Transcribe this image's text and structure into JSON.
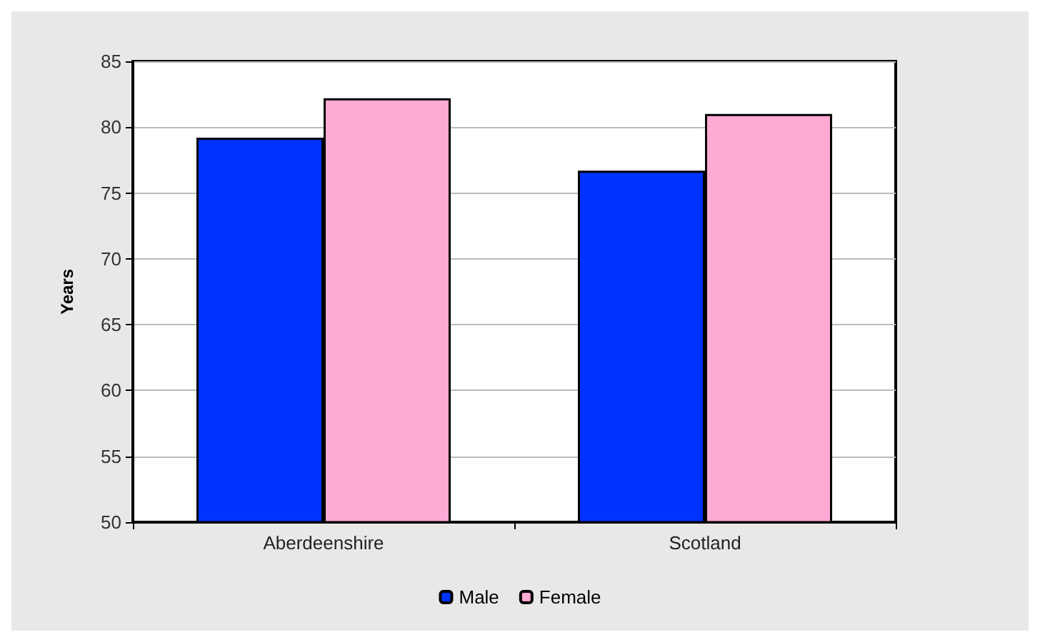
{
  "chart_data": {
    "type": "bar",
    "ylabel": "Years",
    "categories": [
      "Aberdeenshire",
      "Scotland"
    ],
    "series": [
      {
        "name": "Male",
        "color": "#0033ff",
        "values": [
          79.2,
          76.7
        ]
      },
      {
        "name": "Female",
        "color": "#ffaad4",
        "values": [
          82.2,
          81.0
        ]
      }
    ],
    "ylim": [
      50,
      85
    ],
    "yticks": [
      50,
      55,
      60,
      65,
      70,
      75,
      80,
      85
    ],
    "grid": "y",
    "legend": "bottom"
  }
}
